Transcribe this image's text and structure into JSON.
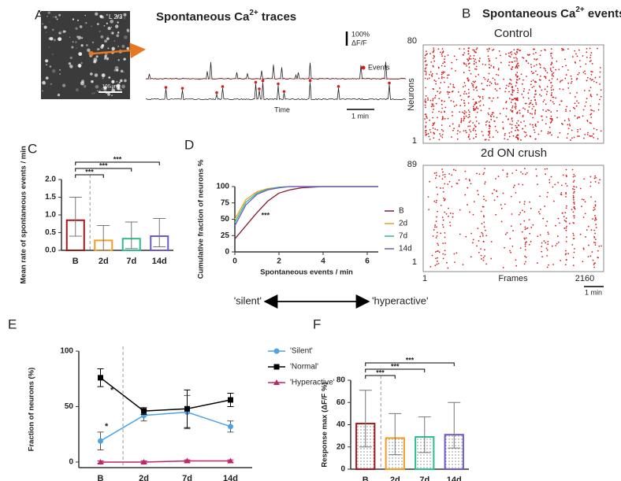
{
  "panel_labels": [
    "A",
    "B",
    "C",
    "D",
    "E",
    "F"
  ],
  "panel_a": {
    "title": "Spontaneous Ca",
    "title_sup": "2+",
    "title_end": " traces",
    "region": "L 2/3",
    "scale_bar": "100 µm",
    "amplitude_scale": "100%",
    "amplitude_unit": "ΔF/F",
    "events_legend": "Events",
    "time_label": "Time",
    "time_scale": "1 min"
  },
  "panel_b": {
    "title": "Spontaneous Ca",
    "title_sup": "2+",
    "title_end": " events",
    "rasters": [
      {
        "title": "Control",
        "y_top": "80",
        "y_bottom": "1"
      },
      {
        "title": "2d ON crush",
        "y_top": "89",
        "y_bottom": "1"
      }
    ],
    "ylabel": "Neurons",
    "xlabel": "Frames",
    "x_start": "1",
    "x_end": "2160",
    "time_scale": "1 min"
  },
  "activity_axis": {
    "left": "'silent'",
    "right": "'hyperactive'"
  },
  "chart_data": [
    {
      "type": "bar",
      "categories": [
        "B",
        "2d",
        "7d",
        "14d"
      ],
      "values": [
        0.85,
        0.28,
        0.33,
        0.4
      ],
      "whisker_low": [
        0.4,
        0.0,
        0.05,
        0.1
      ],
      "whisker_high": [
        1.5,
        0.7,
        0.8,
        0.9
      ],
      "colors": [
        "#a3161a",
        "#f39c22",
        "#2bbf8a",
        "#6a5acd"
      ],
      "fill": "#ffffff",
      "ylabel": "Mean rate of spontaneous events / min",
      "ylim": [
        0,
        2
      ],
      "yticks": [
        {
          "value": 0,
          "label": "0.0"
        },
        0.5,
        {
          "value": 1,
          "label": "1.0"
        },
        1.5,
        {
          "value": 2,
          "label": "2.0"
        }
      ],
      "significance": [
        {
          "pair": [
            "B",
            "2d"
          ],
          "label": "***"
        },
        {
          "pair": [
            "B",
            "7d"
          ],
          "label": "***"
        },
        {
          "pair": [
            "B",
            "14d"
          ],
          "label": "***"
        }
      ]
    },
    {
      "type": "line",
      "x": [
        0,
        0.5,
        1,
        1.5,
        2,
        2.5,
        3,
        4,
        5,
        6.5
      ],
      "series": [
        {
          "name": "B",
          "color": "#8b1a2b",
          "values": [
            20,
            40,
            60,
            78,
            90,
            95,
            98,
            100,
            100,
            100
          ]
        },
        {
          "name": "2d",
          "color": "#f39c22",
          "values": [
            50,
            80,
            92,
            97,
            99,
            100,
            100,
            100,
            100,
            100
          ]
        },
        {
          "name": "7d",
          "color": "#2bbf8a",
          "values": [
            45,
            76,
            90,
            96,
            99,
            100,
            100,
            100,
            100,
            100
          ]
        },
        {
          "name": "14d",
          "color": "#6a5acd",
          "values": [
            40,
            72,
            88,
            95,
            98,
            100,
            100,
            100,
            100,
            100
          ]
        }
      ],
      "xlim": [
        0,
        6.5
      ],
      "xticks": [
        0,
        2,
        4,
        6
      ],
      "ylim": [
        0,
        100
      ],
      "yticks": [
        0,
        25,
        50,
        75,
        100
      ],
      "xlabel": "Spontaneous events / min",
      "ylabel": "Cumulative fraction of neurons %",
      "annotation": "***",
      "legend": "right"
    },
    {
      "type": "line",
      "categories": [
        "B",
        "2d",
        "7d",
        "14d"
      ],
      "series": [
        {
          "name": "'Silent'",
          "color": "#4aa3e8",
          "marker": "circle",
          "values": [
            19,
            42,
            45,
            32
          ],
          "errors": [
            8,
            5,
            15,
            5
          ]
        },
        {
          "name": "'Normal'",
          "color": "#000000",
          "marker": "square",
          "values": [
            76,
            46,
            48,
            56
          ],
          "errors": [
            8,
            3,
            17,
            6
          ]
        },
        {
          "name": "'Hyperactive'",
          "color": "#c0246a",
          "marker": "triangle",
          "values": [
            0,
            0,
            1,
            1
          ],
          "errors": [
            1,
            1,
            1,
            1
          ]
        }
      ],
      "ylim": [
        -5,
        100
      ],
      "yticks": [
        0,
        50,
        100
      ],
      "ylabel": "Fraction of neurons (%)",
      "annotations": [
        "*",
        "*"
      ],
      "legend": "top-right"
    },
    {
      "type": "bar",
      "categories": [
        "B",
        "2d",
        "7d",
        "14d"
      ],
      "values": [
        41,
        28,
        29,
        31
      ],
      "whisker_low": [
        20,
        13,
        15,
        19
      ],
      "whisker_high": [
        71,
        50,
        47,
        60
      ],
      "colors": [
        "#a3161a",
        "#f39c22",
        "#2bbf8a",
        "#6a5acd"
      ],
      "fill": "dots",
      "ylabel": "Response max (ΔF/F %)",
      "ylim": [
        0,
        80
      ],
      "yticks": [
        0,
        20,
        40,
        60,
        80
      ],
      "significance": [
        {
          "pair": [
            "B",
            "2d"
          ],
          "label": "***"
        },
        {
          "pair": [
            "B",
            "7d"
          ],
          "label": "***"
        },
        {
          "pair": [
            "B",
            "14d"
          ],
          "label": "***"
        }
      ]
    }
  ]
}
